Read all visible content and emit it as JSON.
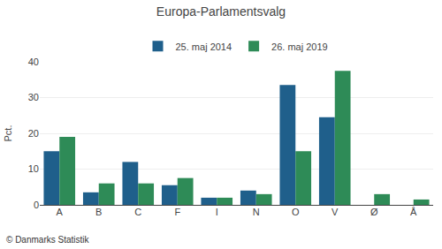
{
  "chart_data": {
    "type": "bar",
    "title": "Europa-Parlamentsvalg",
    "categories": [
      "A",
      "B",
      "C",
      "F",
      "I",
      "N",
      "O",
      "V",
      "Ø",
      "Å"
    ],
    "series": [
      {
        "name": "25. maj 2014",
        "color": "#1f5f8b",
        "values": [
          15.0,
          3.5,
          12.0,
          5.5,
          2.0,
          4.0,
          33.5,
          24.5,
          0.0,
          0.0
        ]
      },
      {
        "name": "26. maj 2019",
        "color": "#2e8b57",
        "values": [
          19.0,
          6.0,
          6.0,
          7.5,
          2.0,
          3.0,
          15.0,
          37.5,
          3.0,
          1.5
        ]
      }
    ],
    "ylabel": "Pct.",
    "ylim": [
      0,
      40
    ],
    "yticks": [
      0,
      10,
      20,
      30,
      40
    ],
    "grid": true,
    "legend": "top",
    "annotations": [
      "© Danmarks Statistik"
    ]
  }
}
